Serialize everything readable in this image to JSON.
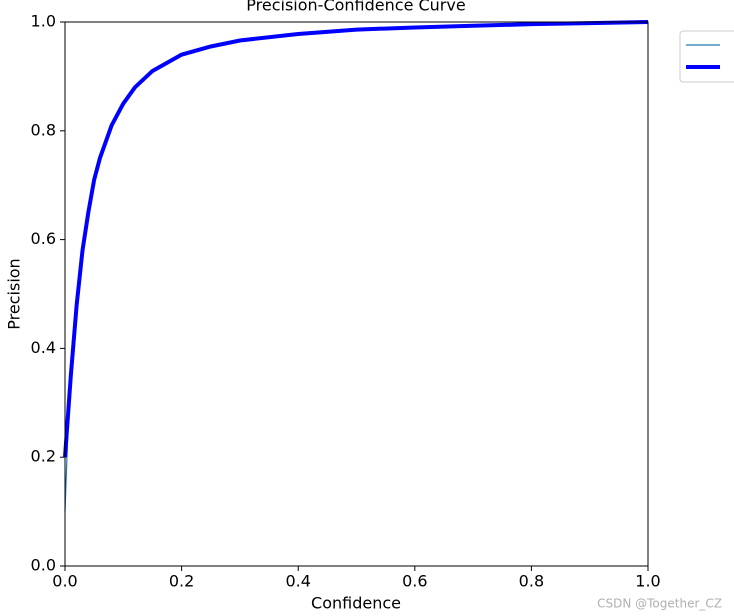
{
  "chart_data": {
    "type": "line",
    "title": "Precision-Confidence Curve",
    "xlabel": "Confidence",
    "ylabel": "Precision",
    "xlim": [
      0,
      1
    ],
    "ylim": [
      0,
      1
    ],
    "xticks": [
      {
        "value": 0,
        "label": "0.0"
      },
      0.2,
      0.4,
      0.6,
      0.8,
      {
        "value": 1,
        "label": "1.0"
      }
    ],
    "yticks": [
      {
        "value": 0,
        "label": "0.0"
      },
      0.2,
      0.4,
      0.6,
      0.8,
      {
        "value": 1,
        "label": "1.0"
      }
    ],
    "legend": "upper-right-outside",
    "series": [
      {
        "color": "#1f77b4",
        "width": 1.2,
        "x": [
          0,
          0.005,
          0.01,
          0.02,
          0.03,
          0.04,
          0.05,
          0.06,
          0.08,
          0.1,
          0.12,
          0.15,
          0.2,
          0.25,
          0.3,
          0.4,
          0.5,
          0.6,
          0.7,
          0.8,
          0.9,
          1.0
        ],
        "values": [
          0.1,
          0.25,
          0.35,
          0.48,
          0.58,
          0.65,
          0.71,
          0.75,
          0.81,
          0.85,
          0.88,
          0.91,
          0.94,
          0.955,
          0.966,
          0.978,
          0.986,
          0.99,
          0.993,
          0.996,
          0.998,
          1.0
        ]
      },
      {
        "color": "#0000ff",
        "width": 4,
        "x": [
          0,
          0.01,
          0.02,
          0.03,
          0.04,
          0.05,
          0.06,
          0.08,
          0.1,
          0.12,
          0.15,
          0.2,
          0.25,
          0.3,
          0.4,
          0.5,
          0.6,
          0.7,
          0.8,
          0.9,
          1.0
        ],
        "values": [
          0.2,
          0.35,
          0.48,
          0.58,
          0.65,
          0.71,
          0.75,
          0.81,
          0.85,
          0.88,
          0.91,
          0.94,
          0.955,
          0.966,
          0.978,
          0.986,
          0.99,
          0.993,
          0.996,
          0.998,
          1.0
        ]
      }
    ]
  },
  "watermark": "CSDN @Together_CZ"
}
